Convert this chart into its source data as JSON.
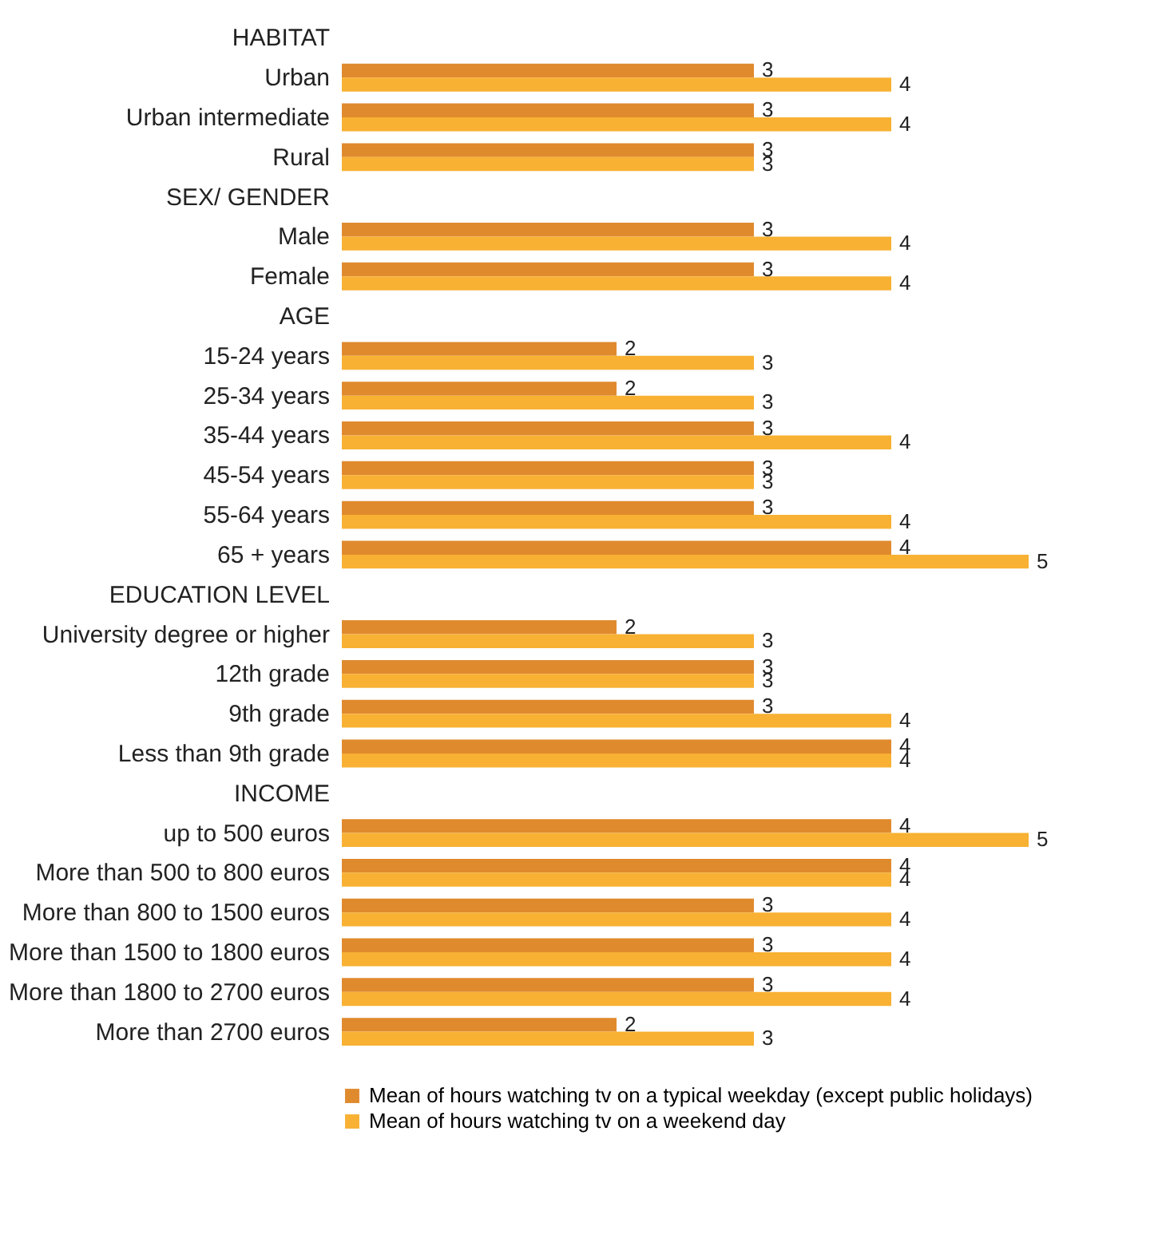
{
  "chart_data": {
    "type": "bar",
    "orientation": "horizontal",
    "categories": [
      "HABITAT",
      "Urban",
      "Urban intermediate",
      "Rural",
      "SEX/ GENDER",
      "Male",
      "Female",
      "AGE",
      "15-24 years",
      "25-34 years",
      "35-44 years",
      "45-54 years",
      "55-64 years",
      "65 + years",
      "EDUCATION LEVEL",
      "University degree or higher",
      "12th grade",
      "9th grade",
      "Less than 9th grade",
      "INCOME",
      "up to 500 euros",
      "More than 500 to 800 euros",
      "More than 800 to 1500 euros",
      "More than 1500 to 1800 euros",
      "More than 1800 to 2700 euros",
      "More than 2700 euros"
    ],
    "series": [
      {
        "name": "Mean of hours watching tv on a typical weekday (except public holidays)",
        "color": "#e08a2e",
        "values": [
          null,
          3,
          3,
          3,
          null,
          3,
          3,
          null,
          2,
          2,
          3,
          3,
          3,
          4,
          null,
          2,
          3,
          3,
          4,
          null,
          4,
          4,
          3,
          3,
          3,
          2
        ]
      },
      {
        "name": "Mean of hours watching tv on a weekend day",
        "color": "#f8b133",
        "values": [
          null,
          4,
          4,
          3,
          null,
          4,
          4,
          null,
          3,
          3,
          4,
          3,
          4,
          5,
          null,
          3,
          3,
          4,
          4,
          null,
          5,
          4,
          4,
          4,
          4,
          3
        ]
      }
    ],
    "xlim": [
      0,
      5
    ],
    "data_labels": true,
    "tick_labels": "y",
    "legend": "bottom"
  }
}
